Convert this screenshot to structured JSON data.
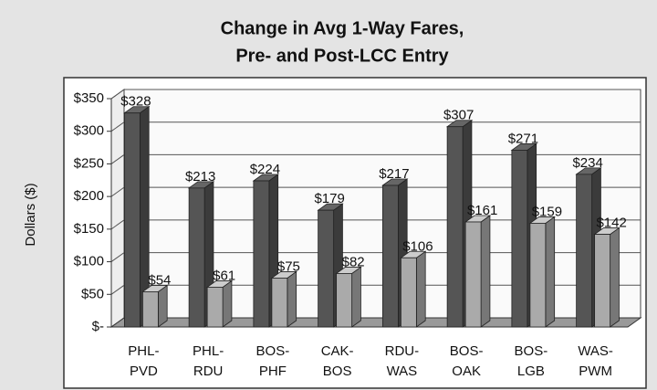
{
  "chart_data": {
    "type": "bar",
    "title": [
      "Change in Avg 1-Way Fares,",
      "Pre- and Post-LCC Entry"
    ],
    "y_label": "Dollars ($)",
    "categories": [
      "PHL-PVD",
      "PHL-RDU",
      "BOS-PHF",
      "CAK-BOS",
      "RDU-WAS",
      "BOS-OAK",
      "BOS-LGB",
      "WAS-PWM"
    ],
    "series": [
      {
        "color": "#555555",
        "values": [
          328,
          213,
          224,
          179,
          217,
          307,
          271,
          234
        ],
        "value_labels": [
          "$328",
          "$213",
          "$224",
          "$179",
          "$217",
          "$307",
          "$271",
          "$234"
        ]
      },
      {
        "color": "#aaaaaa",
        "values": [
          54,
          61,
          75,
          82,
          106,
          161,
          159,
          142
        ],
        "value_labels": [
          "$54",
          "$61",
          "$75",
          "$82",
          "$106",
          "$161",
          "$159",
          "$142"
        ]
      }
    ],
    "ylim": [
      0,
      350
    ],
    "yticks": [
      {
        "value": 0,
        "label": "$-"
      },
      {
        "value": 50,
        "label": "$50"
      },
      {
        "value": 100,
        "label": "$100"
      },
      {
        "value": 150,
        "label": "$150"
      },
      {
        "value": 200,
        "label": "$200"
      },
      {
        "value": 250,
        "label": "$250"
      },
      {
        "value": 300,
        "label": "$300"
      },
      {
        "value": 350,
        "label": "$350"
      }
    ],
    "grid": true
  }
}
